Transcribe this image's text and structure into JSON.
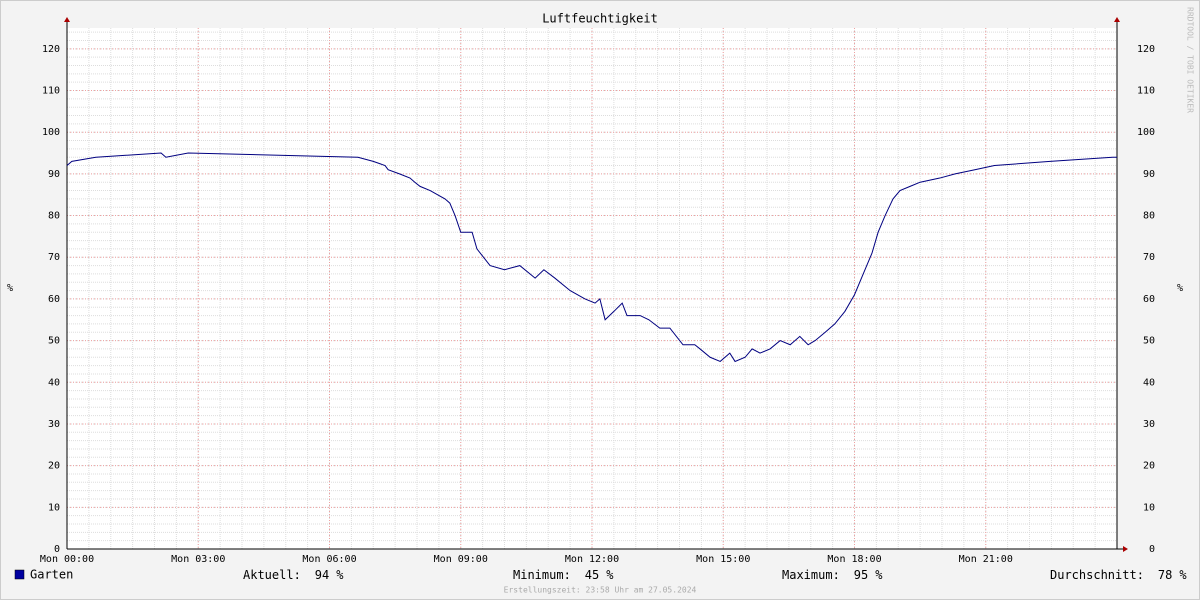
{
  "chart_data": {
    "type": "line",
    "title": "Luftfeuchtigkeit",
    "y_label": "%",
    "y2_label": "%",
    "watermark": "RRDTOOL / TOBI OETIKER",
    "footer": "Erstellungszeit: 23:58 Uhr am 27.05.2024",
    "xlim": [
      0,
      24
    ],
    "ylim": [
      0,
      125
    ],
    "xticks": [
      {
        "value": 0,
        "label": "Mon 00:00"
      },
      {
        "value": 3,
        "label": "Mon 03:00"
      },
      {
        "value": 6,
        "label": "Mon 06:00"
      },
      {
        "value": 9,
        "label": "Mon 09:00"
      },
      {
        "value": 12,
        "label": "Mon 12:00"
      },
      {
        "value": 15,
        "label": "Mon 15:00"
      },
      {
        "value": 18,
        "label": "Mon 18:00"
      },
      {
        "value": 21,
        "label": "Mon 21:00"
      }
    ],
    "yticks": [
      0,
      10,
      20,
      30,
      40,
      50,
      60,
      70,
      80,
      90,
      100,
      110,
      120
    ],
    "grid": true,
    "minor_grid": {
      "x": 0.5,
      "y": 2
    },
    "x": [
      0,
      0.11,
      0.66,
      2.15,
      2.26,
      2.77,
      6.65,
      7.0,
      7.27,
      7.34,
      7.6,
      7.84,
      7.95,
      8.07,
      8.3,
      8.64,
      8.75,
      8.87,
      9.0,
      9.26,
      9.37,
      9.67,
      10.0,
      10.35,
      10.7,
      10.9,
      11.15,
      11.5,
      11.84,
      12.07,
      12.18,
      12.3,
      12.5,
      12.69,
      12.8,
      13.1,
      13.3,
      13.55,
      13.78,
      14.08,
      14.35,
      14.47,
      14.7,
      14.93,
      15.15,
      15.27,
      15.5,
      15.66,
      15.84,
      16.07,
      16.3,
      16.53,
      16.75,
      16.94,
      17.1,
      17.33,
      17.55,
      17.78,
      18.0,
      18.24,
      18.4,
      18.54,
      18.7,
      18.88,
      19.04,
      19.27,
      19.5,
      19.95,
      20.3,
      20.75,
      21.2,
      22.47,
      23.9,
      24
    ],
    "series": [
      {
        "name": "Garten",
        "color": "#000080",
        "values": [
          92,
          93,
          94,
          95,
          94,
          95,
          94,
          93,
          92,
          91,
          90,
          89,
          88,
          87,
          86,
          84,
          83,
          80,
          76,
          76,
          72,
          68,
          67,
          68,
          65,
          67,
          65,
          62,
          60,
          59,
          60,
          55,
          57,
          59,
          56,
          56,
          55,
          53,
          53,
          49,
          49,
          48,
          46,
          45,
          47,
          45,
          46,
          48,
          47,
          48,
          50,
          49,
          51,
          49,
          50,
          52,
          54,
          57,
          61,
          67,
          71,
          76,
          80,
          84,
          86,
          87,
          88,
          89,
          90,
          91,
          92,
          93,
          94,
          94
        ]
      }
    ],
    "legend_color": "#0000a0",
    "stats": [
      {
        "label": "Aktuell:",
        "value": 94,
        "unit": "%"
      },
      {
        "label": "Minimum:",
        "value": 45,
        "unit": "%"
      },
      {
        "label": "Maximum:",
        "value": 95,
        "unit": "%"
      },
      {
        "label": "Durchschnitt:",
        "value": 78,
        "unit": "%"
      }
    ]
  }
}
